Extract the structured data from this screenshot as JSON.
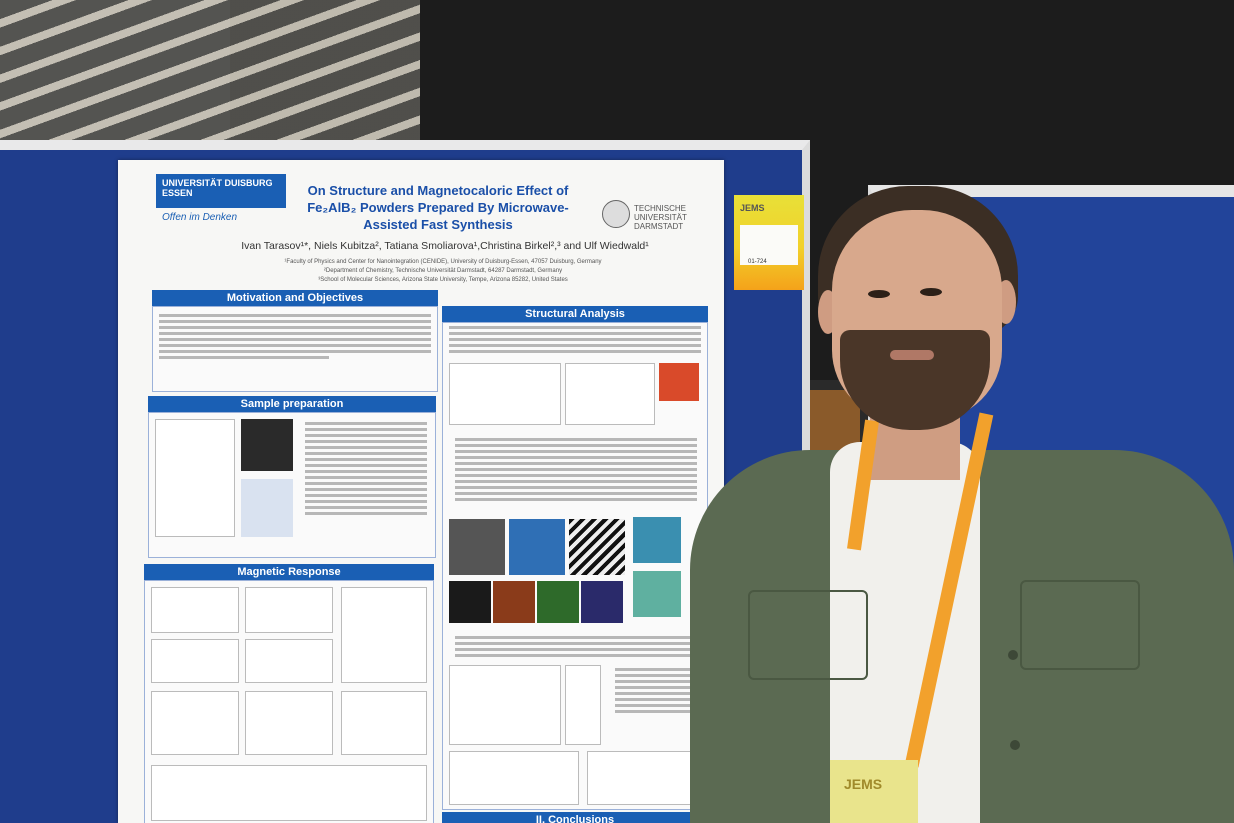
{
  "poster": {
    "logo": "UNIVERSITÄT DUISBURG ESSEN",
    "slogan": "Offen im Denken",
    "title": "On Structure and Magnetocaloric Effect of Fe₂AlB₂ Powders Prepared By Microwave-Assisted Fast Synthesis",
    "partner": "TECHNISCHE UNIVERSITÄT DARMSTADT",
    "authors": "Ivan Tarasov¹*, Niels Kubitza², Tatiana Smoliarova¹,Christina Birkel²,³ and Ulf Wiedwald¹",
    "affiliations": [
      "¹Faculty of Physics and Center for Nanointegration (CENIDE), University of Duisburg-Essen, 47057 Duisburg, Germany",
      "²Department of Chemistry, Technische Universität Darmstadt, 64287 Darmstadt, Germany",
      "³School of Molecular Sciences, Arizona State University, Tempe, Arizona 85282, United States"
    ],
    "sections": {
      "motivation": "Motivation and Objectives",
      "sample": "Sample preparation",
      "magnetic": "Magnetic Response",
      "structural": "Structural Analysis",
      "conclusions": "II. Conclusions"
    }
  },
  "tag": {
    "logo": "JEMS",
    "number": "01-724"
  },
  "badge": {
    "logo": "JEMS"
  }
}
